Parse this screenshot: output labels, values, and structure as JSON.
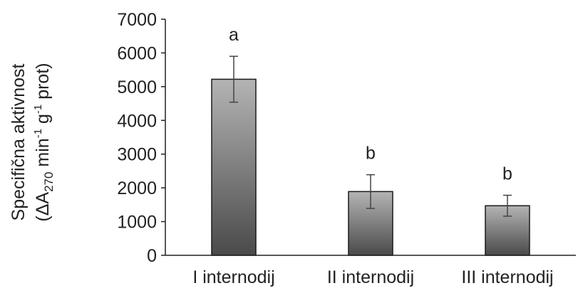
{
  "chart_data": {
    "type": "bar",
    "categories": [
      "I internodij",
      "II internodij",
      "III internodij"
    ],
    "values": [
      5220,
      1890,
      1470
    ],
    "errors": [
      680,
      500,
      310
    ],
    "significance": [
      "a",
      "b",
      "b"
    ],
    "title": "",
    "xlabel": "",
    "ylabel_line1": "Specifična aktivnost",
    "ylabel_line2_parts": {
      "open": "(ΔA",
      "sub": "270",
      "mid1": " min",
      "sup1": "-1",
      "mid2": " g",
      "sup2": "-1",
      "close": " prot)"
    },
    "ylim": [
      0,
      7000
    ],
    "yticks": [
      "0",
      "1000",
      "2000",
      "3000",
      "4000",
      "5000",
      "6000",
      "7000"
    ],
    "grid": false,
    "legend": "none",
    "colors": {
      "bar_dark": "#4a4a4a",
      "bar_light": "#b4b4b4",
      "bar_stroke": "#1a1a1a",
      "axis": "#222222",
      "error_bar": "#444444"
    }
  }
}
